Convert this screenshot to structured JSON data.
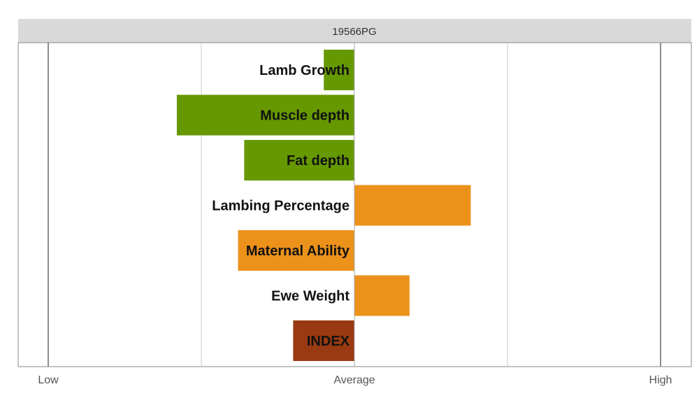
{
  "chart_data": {
    "type": "bar",
    "orientation": "horizontal",
    "title": "19566PG",
    "xlabel": "",
    "ylabel": "",
    "xlim": [
      -100,
      100
    ],
    "x_tick_labels": [
      {
        "value": -100,
        "label": "Low"
      },
      {
        "value": 0,
        "label": "Average"
      },
      {
        "value": 100,
        "label": "High"
      }
    ],
    "gridlines_at": [
      -100,
      -50,
      0,
      50,
      100
    ],
    "grid": true,
    "legend": "none",
    "categories": [
      "Lamb Growth",
      "Muscle depth",
      "Fat depth",
      "Lambing Percentage",
      "Maternal Ability",
      "Ewe Weight",
      "INDEX"
    ],
    "values": [
      -10,
      -58,
      -36,
      38,
      -38,
      18,
      -20
    ],
    "bar_colors": [
      "#669900",
      "#669900",
      "#669900",
      "#ec921b",
      "#ec921b",
      "#ec921b",
      "#993a12"
    ]
  }
}
